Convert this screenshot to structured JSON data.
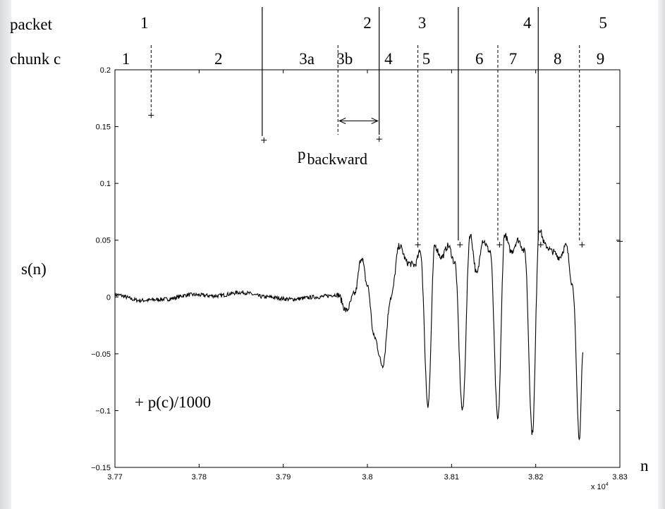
{
  "chart_data": {
    "type": "line",
    "title": "",
    "xlabel": "n",
    "ylabel": "s(n)",
    "x_exponent_label": "x 10",
    "x_exponent_sup": "4",
    "xlim": [
      3.77,
      3.83
    ],
    "ylim": [
      -0.15,
      0.2
    ],
    "x_ticks": [
      3.77,
      3.78,
      3.79,
      3.8,
      3.81,
      3.82,
      3.83
    ],
    "x_tick_labels": [
      "3.77",
      "3.78",
      "3.79",
      "3.8",
      "3.81",
      "3.82",
      "3.83"
    ],
    "y_ticks": [
      -0.15,
      -0.1,
      -0.05,
      0,
      0.05,
      0.1,
      0.15,
      0.2
    ],
    "y_tick_labels": [
      "−0.15",
      "−0.1",
      "−0.05",
      "0",
      "0.05",
      "0.1",
      "0.15",
      "0.2"
    ],
    "grid": false,
    "signal_series": {
      "x": [
        3.77,
        3.773,
        3.776,
        3.779,
        3.782,
        3.785,
        3.788,
        3.791,
        3.794,
        3.7965,
        3.7975,
        3.7985,
        3.7993,
        3.8,
        3.8008,
        3.8018,
        3.8028,
        3.8038,
        3.8048,
        3.8056,
        3.8063,
        3.8072,
        3.808,
        3.8088,
        3.8096,
        3.8104,
        3.8113,
        3.8122,
        3.813,
        3.8137,
        3.8146,
        3.8155,
        3.8163,
        3.8171,
        3.8179,
        3.8187,
        3.8196,
        3.8204,
        3.8212,
        3.822,
        3.8228,
        3.8236,
        3.8244,
        3.8252,
        3.8256
      ],
      "y": [
        0.002,
        -0.003,
        -0.002,
        0.002,
        0.001,
        0.004,
        0.0,
        -0.002,
        0.0,
        0.002,
        -0.012,
        0.003,
        0.035,
        0.01,
        -0.035,
        -0.06,
        0.0,
        0.045,
        0.03,
        0.028,
        0.04,
        -0.095,
        0.045,
        0.035,
        0.045,
        0.03,
        -0.1,
        0.055,
        0.02,
        0.05,
        0.04,
        -0.108,
        0.055,
        0.04,
        0.05,
        0.04,
        -0.12,
        0.06,
        0.045,
        0.04,
        0.035,
        0.045,
        0.01,
        -0.125,
        -0.05
      ]
    },
    "markers": {
      "symbol": "+",
      "legend": "+  p(c)/1000",
      "points": [
        {
          "x": 3.7743,
          "y": 0.16
        },
        {
          "x": 3.7877,
          "y": 0.138
        },
        {
          "x": 3.8014,
          "y": 0.139
        },
        {
          "x": 3.806,
          "y": 0.046
        },
        {
          "x": 3.811,
          "y": 0.046
        },
        {
          "x": 3.8157,
          "y": 0.046
        },
        {
          "x": 3.8206,
          "y": 0.046
        },
        {
          "x": 3.8255,
          "y": 0.046
        },
        {
          "x": 3.83,
          "y": 0.049
        }
      ]
    },
    "packet_boundaries_n": [
      3.7875,
      3.8014,
      3.8108,
      3.8203
    ],
    "chunk_boundaries_n": [
      3.7743,
      3.7965,
      3.806,
      3.8155,
      3.8252
    ],
    "backward_arrow": {
      "from": 3.7965,
      "to": 3.8014,
      "y": 0.155,
      "label_main": "p",
      "label_sub": "backward"
    },
    "packet_row": {
      "label": "packet",
      "items": [
        {
          "label": "1",
          "x": 3.7735
        },
        {
          "label": "2",
          "x": 3.8
        },
        {
          "label": "3",
          "x": 3.8065
        },
        {
          "label": "4",
          "x": 3.819
        },
        {
          "label": "5",
          "x": 3.828
        }
      ]
    },
    "chunk_row": {
      "label": "chunk c",
      "items": [
        {
          "label": "1",
          "x": 3.7713
        },
        {
          "label": "2",
          "x": 3.7823
        },
        {
          "label": "3a",
          "x": 3.7928
        },
        {
          "label": "3b",
          "x": 3.7973
        },
        {
          "label": "4",
          "x": 3.8025
        },
        {
          "label": "5",
          "x": 3.807
        },
        {
          "label": "6",
          "x": 3.8133
        },
        {
          "label": "7",
          "x": 3.8173
        },
        {
          "label": "8",
          "x": 3.8226
        },
        {
          "label": "9",
          "x": 3.8277
        }
      ]
    }
  }
}
